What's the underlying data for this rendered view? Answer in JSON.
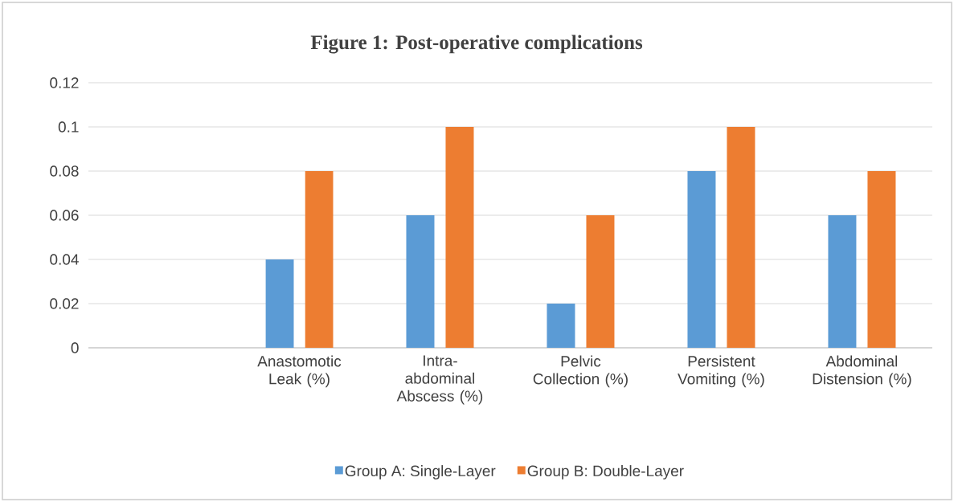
{
  "chart_data": {
    "type": "bar",
    "title": "Figure 1: Post-operative complications",
    "categories": [
      null,
      "Anastomotic Leak (%)",
      "Intra-abdominal Abscess (%)",
      "Pelvic Collection (%)",
      "Persistent Vomiting (%)",
      "Abdominal Distension (%)"
    ],
    "series": [
      {
        "name": "Group A: Single-Layer",
        "color": "#5b9bd5",
        "values": [
          null,
          0.04,
          0.06,
          0.02,
          0.08,
          0.06
        ]
      },
      {
        "name": "Group B: Double-Layer",
        "color": "#ed7d31",
        "values": [
          null,
          0.08,
          0.1,
          0.06,
          0.1,
          0.08
        ]
      }
    ],
    "ylim": [
      0,
      0.12
    ],
    "yticks": [
      0,
      0.02,
      0.04,
      0.06,
      0.08,
      0.1,
      0.12
    ],
    "grid": "y",
    "legend": "bottom"
  }
}
